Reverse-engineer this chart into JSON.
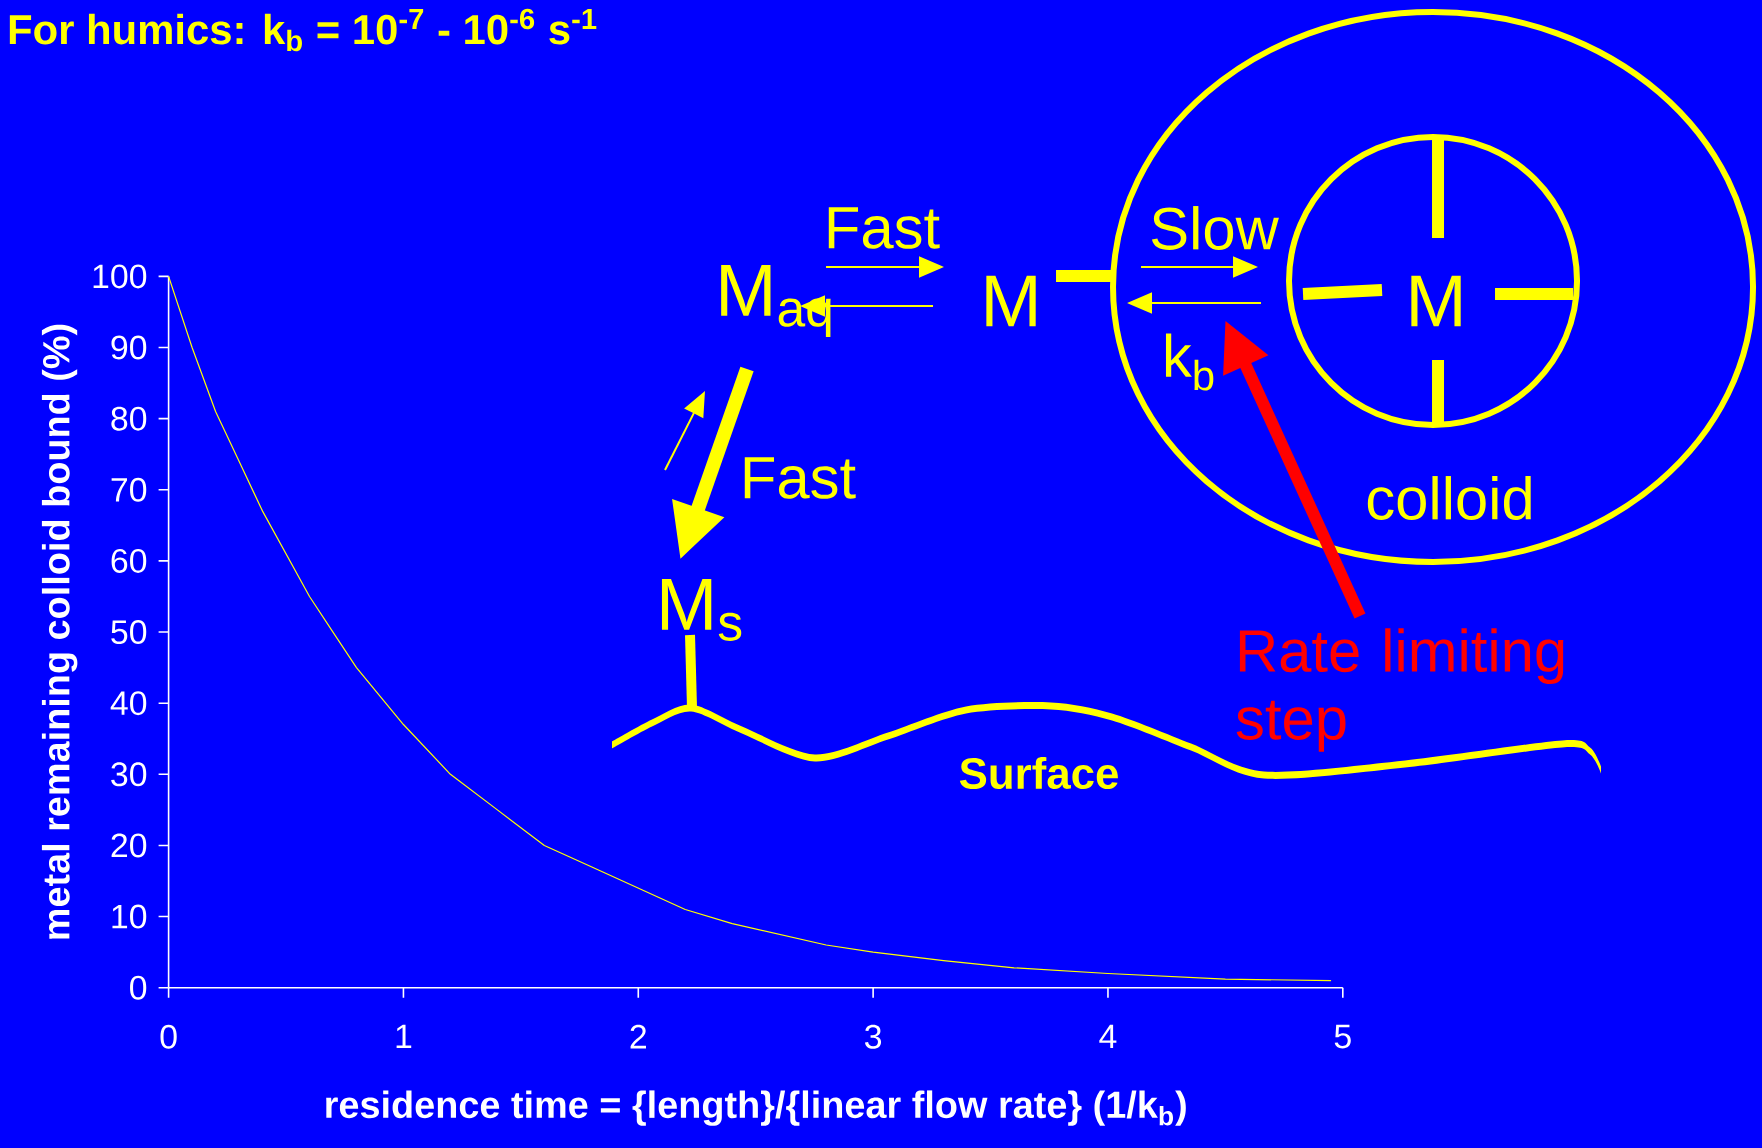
{
  "chart_data": {
    "type": "line",
    "title": "For humics: k$_{b}$ = 10$^{-7}$ - 10$^{-6}$ s$^{-1}$",
    "xlabel": "residence time = {length}/{linear flow rate} (1/k$_{b}$)",
    "ylabel": "metal remaining colloid bound (%)",
    "x": [
      0,
      0.1,
      0.2,
      0.3,
      0.4,
      0.5,
      0.6,
      0.7,
      0.8,
      0.9,
      1,
      1.2,
      1.4,
      1.6,
      1.8,
      2,
      2.2,
      2.4,
      2.6,
      2.8,
      3,
      3.3,
      3.6,
      4,
      4.5,
      4.95
    ],
    "series": [
      {
        "color": "#ffff00",
        "values": [
          100,
          90,
          81,
          74,
          67,
          61,
          55,
          50,
          45,
          41,
          37,
          30,
          25,
          20,
          17,
          14,
          11,
          9,
          7.5,
          6,
          5,
          3.8,
          2.8,
          2,
          1.2,
          1
        ]
      }
    ],
    "xlim": [
      0,
      5
    ],
    "ylim": [
      0,
      100
    ],
    "xticks": [
      0,
      1,
      2,
      3,
      4,
      5
    ],
    "yticks": [
      0,
      10,
      20,
      30,
      40,
      50,
      60,
      70,
      80,
      90,
      100
    ],
    "annotations": [
      "Fast",
      "M$_{aq}$",
      "M",
      "Slow",
      "k$_{b}$",
      "M",
      "Fast",
      "M$_{s}$",
      "colloid",
      "Rate limiting step",
      "Surface"
    ]
  }
}
